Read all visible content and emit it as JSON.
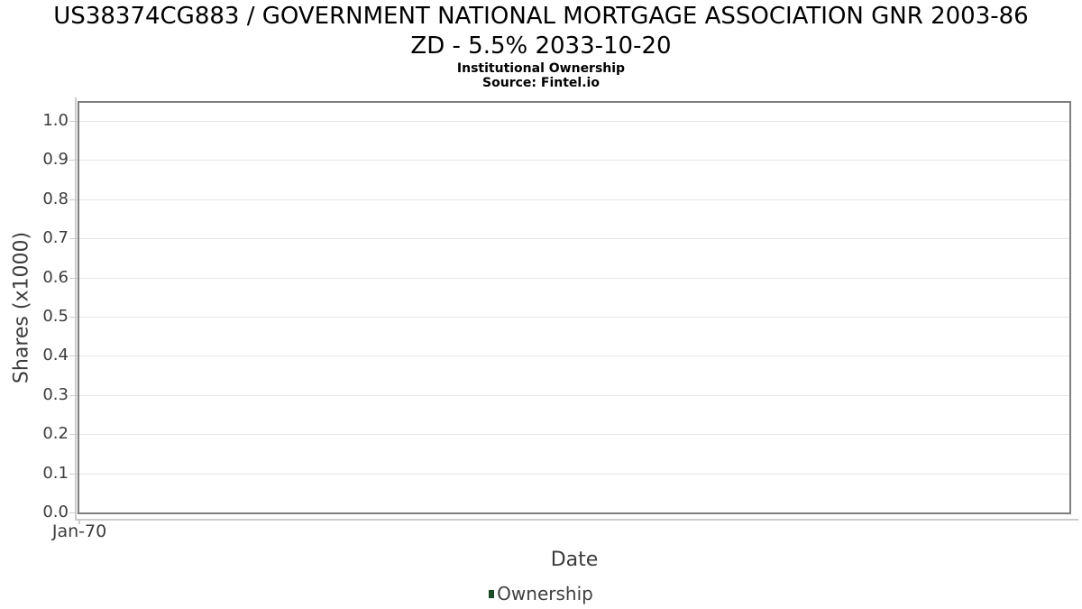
{
  "chart_data": {
    "type": "line",
    "title": "US38374CG883 / GOVERNMENT NATIONAL MORTGAGE ASSOCIATION GNR 2003-86 ZD - 5.5% 2033-10-20",
    "title_lines": [
      "US38374CG883 / GOVERNMENT NATIONAL MORTGAGE ASSOCIATION GNR 2003-86",
      "ZD - 5.5% 2033-10-20"
    ],
    "subtitle": "Institutional Ownership",
    "source_note": "Source: Fintel.io",
    "xlabel": "Date",
    "ylabel": "Shares (x1000)",
    "x_tick_labels": [
      "Jan-70"
    ],
    "y_tick_values": [
      0.0,
      0.1,
      0.2,
      0.3,
      0.4,
      0.5,
      0.6,
      0.7,
      0.8,
      0.9,
      1.0
    ],
    "y_tick_labels": [
      "0.0",
      "0.1",
      "0.2",
      "0.3",
      "0.4",
      "0.5",
      "0.6",
      "0.7",
      "0.8",
      "0.9",
      "1.0"
    ],
    "ylim": [
      0,
      1.046
    ],
    "grid": "horizontal-only",
    "legend_position": "bottom-center",
    "legend": {
      "entries": [
        {
          "label": "Ownership",
          "color": "#1d4a26"
        }
      ]
    },
    "series": [
      {
        "name": "Ownership",
        "color": "#1d4a26",
        "points": []
      }
    ]
  },
  "colors": {
    "plot_border": "#7f7f7f",
    "gridline": "#e6e6e6",
    "axis_line": "#cccccc",
    "tick_text": "#3c3c3c",
    "title_text": "#000000"
  }
}
